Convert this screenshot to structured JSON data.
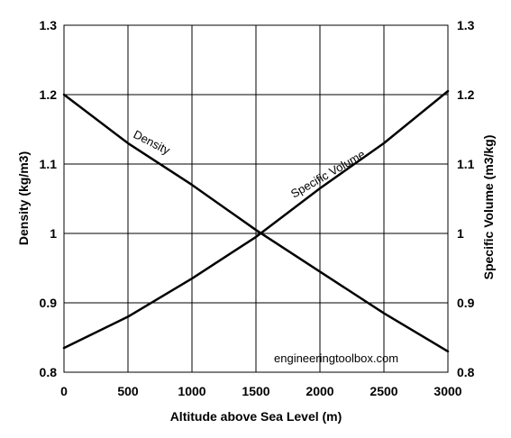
{
  "chart_data": {
    "type": "line",
    "xlabel": "Altitude above Sea Level (m)",
    "ylabel_left": "Density (kg/m3)",
    "ylabel_right": "Specific Volume (m3/kg)",
    "xlim": [
      0,
      3000
    ],
    "ylim": [
      0.8,
      1.3
    ],
    "xticks": [
      "0",
      "500",
      "1000",
      "1500",
      "2000",
      "2500",
      "3000"
    ],
    "yticks": [
      "0.8",
      "0.9",
      "1",
      "1.1",
      "1.2",
      "1.3"
    ],
    "grid": true,
    "series": [
      {
        "name": "Density",
        "x": [
          0,
          500,
          1000,
          1500,
          2000,
          2500,
          3000
        ],
        "y": [
          1.2,
          1.13,
          1.07,
          1.005,
          0.945,
          0.885,
          0.83
        ]
      },
      {
        "name": "Specific Volume",
        "x": [
          0,
          500,
          1000,
          1500,
          2000,
          2500,
          3000
        ],
        "y": [
          0.835,
          0.88,
          0.935,
          0.995,
          1.065,
          1.13,
          1.205
        ]
      }
    ],
    "annotation": "engineeringtoolbox.com",
    "colors": {
      "line": "#000000",
      "grid": "#000000",
      "background": "#ffffff"
    }
  }
}
